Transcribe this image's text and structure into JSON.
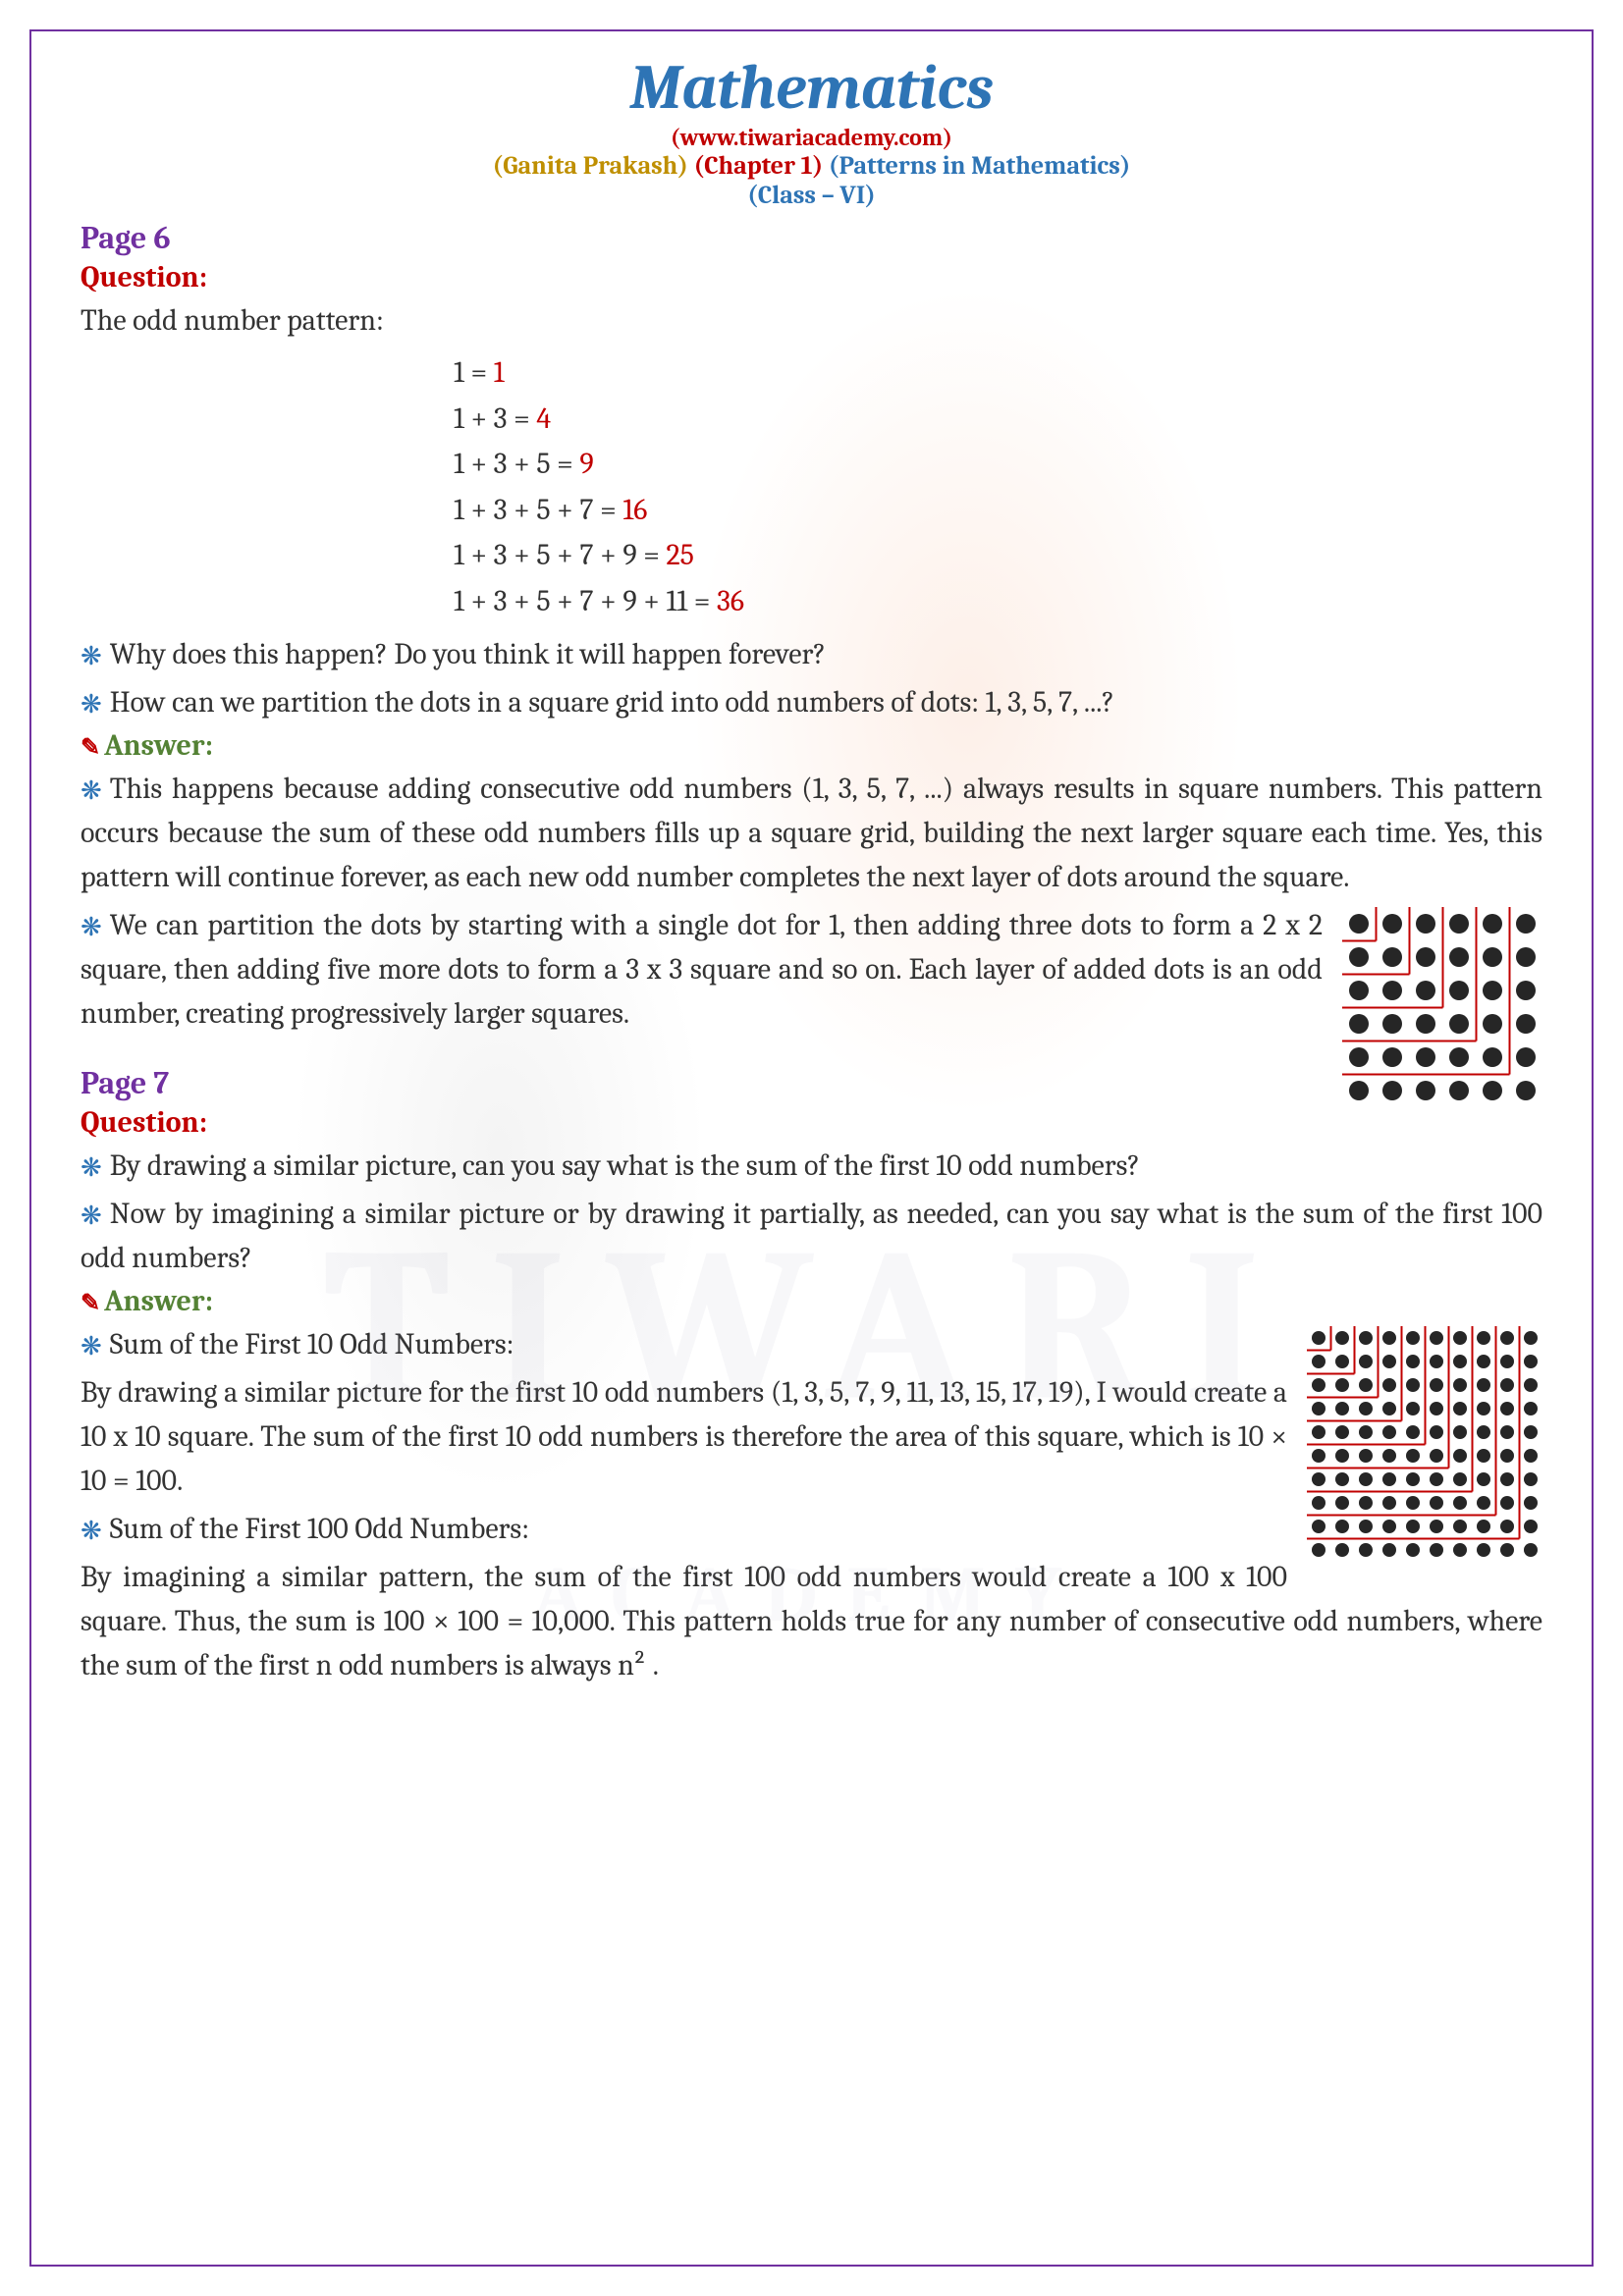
{
  "header": {
    "title": "Mathematics",
    "website": "(www.tiwariacademy.com)",
    "ganita": "(Ganita Prakash)",
    "chapter": "(Chapter 1)",
    "patterns": "(Patterns in Mathematics)",
    "class_line": "(Class – VI)"
  },
  "page6": {
    "label": "Page 6",
    "question_label": "Question:",
    "intro": "The odd number pattern:",
    "equations": [
      {
        "lhs": "1 = ",
        "rhs": "1"
      },
      {
        "lhs": "1 + 3 = ",
        "rhs": "4"
      },
      {
        "lhs": "1 + 3 + 5 = ",
        "rhs": "9"
      },
      {
        "lhs": "1 + 3 + 5 + 7 = ",
        "rhs": "16"
      },
      {
        "lhs": "1 + 3 + 5 + 7 + 9 = ",
        "rhs": "25"
      },
      {
        "lhs": "1 + 3 + 5 + 7 + 9 + 11 = ",
        "rhs": "36"
      }
    ],
    "q1": "Why does this happen? Do you think it will happen forever?",
    "q2": "How can we partition the dots in a square grid into odd numbers of dots: 1, 3, 5, 7, ...?",
    "answer_label": "Answer:",
    "a1": "This happens because adding consecutive odd numbers (1, 3, 5, 7, ...) always results in square numbers. This pattern occurs because the sum of these odd numbers fills up a square grid, building the next larger square each time. Yes, this pattern will continue forever, as each new odd number completes the next layer of dots around the square.",
    "a2": "We can partition the dots by starting with a single dot for 1, then adding three dots to form a 2 x 2 square, then adding five more dots to form a 3 x 3 square and so on. Each layer of added dots is an odd number, creating progressively larger squares.",
    "diagram": {
      "size": 6,
      "line_color": "#c00000",
      "dot_color": "#262626"
    }
  },
  "page7": {
    "label": "Page 7",
    "question_label": "Question:",
    "q1": "By drawing a similar picture, can you say what is the sum of the first 10 odd numbers?",
    "q2": "Now by imagining a similar picture or by drawing it partially, as needed, can you say what is the sum of the first 100 odd numbers?",
    "answer_label": "Answer:",
    "a1_title": "Sum of the First 10 Odd Numbers:",
    "a1": "By drawing a similar picture for the first 10 odd numbers (1, 3, 5, 7, 9, 11, 13, 15, 17, 19), I would create a 10 x 10 square. The sum of the first 10 odd numbers is therefore the area of this square, which is 10 × 10 = 100.",
    "a2_title": "Sum of the First 100 Odd Numbers:",
    "a2": "By imagining a similar pattern, the sum of the first 100 odd numbers would create a 100 x 100 square. Thus, the sum is 100 × 100 = 10,000. This pattern holds true for any number of consecutive odd numbers, where the sum of the first n odd numbers is always n² .",
    "diagram": {
      "size": 10,
      "line_color": "#c00000",
      "dot_color": "#262626"
    }
  },
  "colors": {
    "title": "#2e74b5",
    "red": "#c00000",
    "gold": "#bf8f00",
    "purple": "#7030a0",
    "green": "#548235",
    "text": "#333333"
  }
}
